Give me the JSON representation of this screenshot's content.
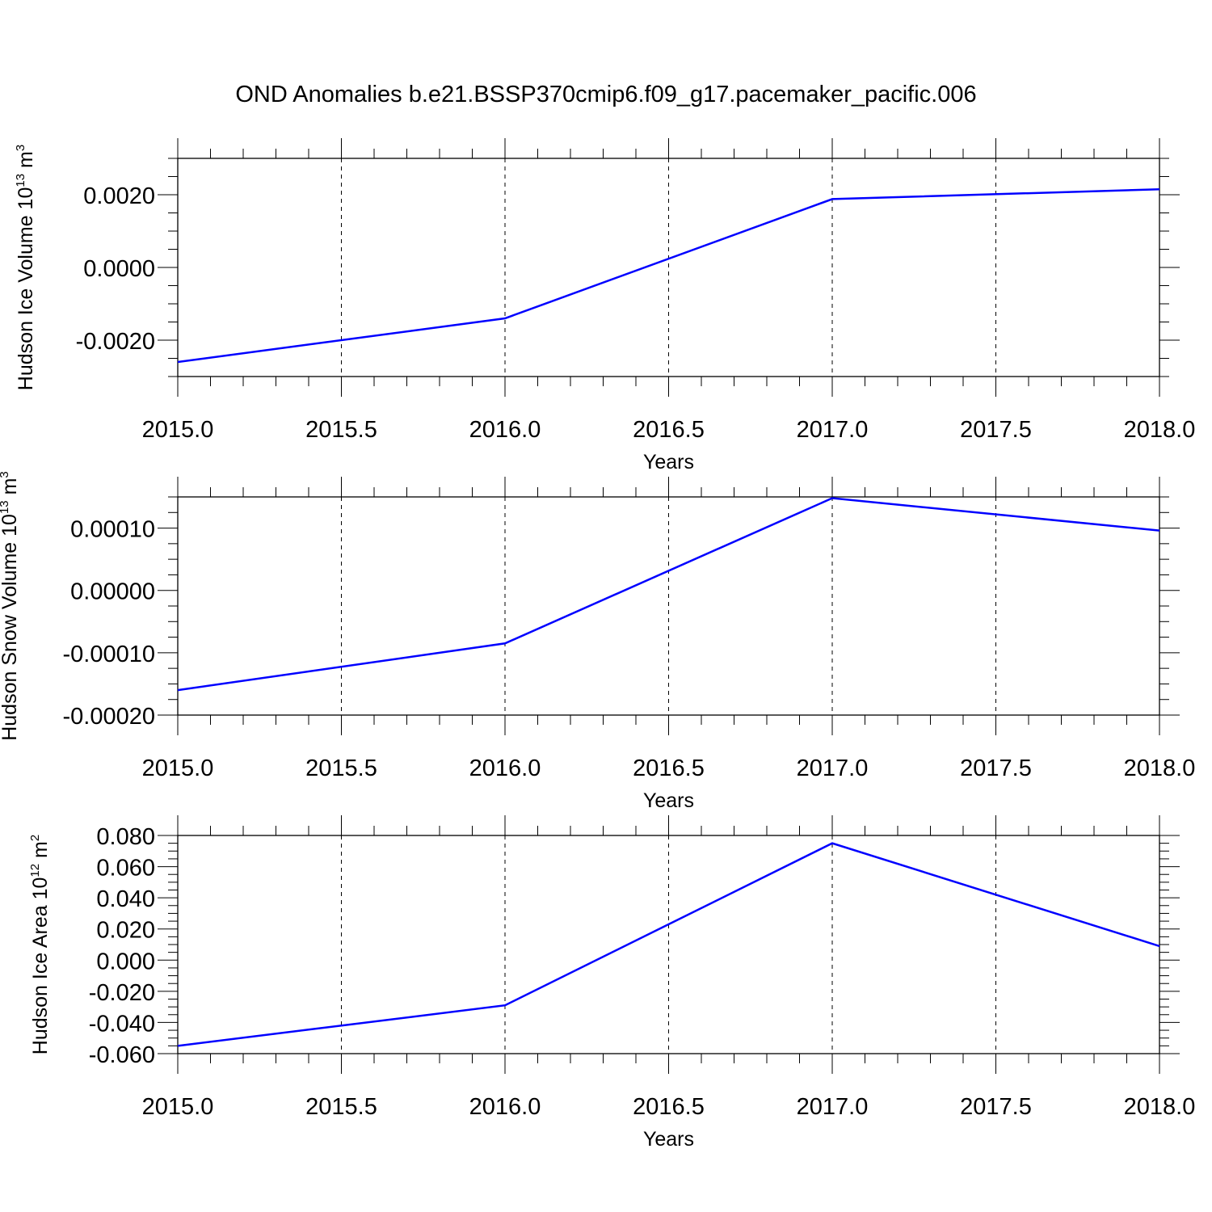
{
  "title": "OND Anomalies b.e21.BSSP370cmip6.f09_g17.pacemaker_pacific.006",
  "colors": {
    "series": "#0000ff",
    "axis": "#000000",
    "grid": "#000000"
  },
  "chart_data": [
    {
      "type": "line",
      "ylabel": {
        "main": "Hudson Ice Volume 10",
        "exp": "13",
        "unit": " m",
        "unit_exp": "3"
      },
      "xlabel": "Years",
      "xlim": [
        2015,
        2018
      ],
      "ylim": [
        -0.003,
        0.003
      ],
      "x_ticks": [
        "2015.0",
        "2015.5",
        "2016.0",
        "2016.5",
        "2017.0",
        "2017.5",
        "2018.0"
      ],
      "y_ticks": [
        "0.0020",
        "0.0000",
        "-0.0020"
      ],
      "grid": "x-dashed",
      "series": [
        {
          "x": [
            2015,
            2016,
            2017,
            2018
          ],
          "y": [
            -0.0026,
            -0.0014,
            0.00188,
            0.00215
          ]
        }
      ]
    },
    {
      "type": "line",
      "ylabel": {
        "main": "Hudson Snow Volume 10",
        "exp": "13",
        "unit": " m",
        "unit_exp": "3"
      },
      "xlabel": "Years",
      "xlim": [
        2015,
        2018
      ],
      "ylim": [
        -0.0002,
        0.00015
      ],
      "x_ticks": [
        "2015.0",
        "2015.5",
        "2016.0",
        "2016.5",
        "2017.0",
        "2017.5",
        "2018.0"
      ],
      "y_ticks": [
        "0.00010",
        "0.00000",
        "-0.00010",
        "-0.00020"
      ],
      "grid": "x-dashed",
      "series": [
        {
          "x": [
            2015,
            2016,
            2017,
            2018
          ],
          "y": [
            -0.00016,
            -8.5e-05,
            0.000148,
            9.6e-05
          ]
        }
      ]
    },
    {
      "type": "line",
      "ylabel": {
        "main": "Hudson Ice Area 10",
        "exp": "12",
        "unit": " m",
        "unit_exp": "2"
      },
      "xlabel": "Years",
      "xlim": [
        2015,
        2018
      ],
      "ylim": [
        -0.06,
        0.08
      ],
      "x_ticks": [
        "2015.0",
        "2015.5",
        "2016.0",
        "2016.5",
        "2017.0",
        "2017.5",
        "2018.0"
      ],
      "y_ticks": [
        "0.080",
        "0.060",
        "0.040",
        "0.020",
        "0.000",
        "-0.020",
        "-0.040",
        "-0.060"
      ],
      "grid": "x-dashed",
      "series": [
        {
          "x": [
            2015,
            2016,
            2017,
            2018
          ],
          "y": [
            -0.055,
            -0.029,
            0.075,
            0.009
          ]
        }
      ]
    }
  ]
}
